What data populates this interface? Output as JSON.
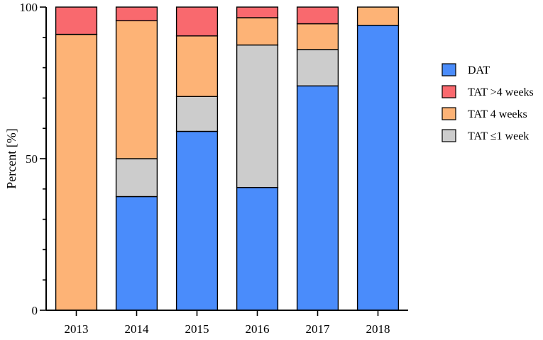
{
  "chart_data": {
    "type": "bar",
    "stacked": true,
    "title": "",
    "xlabel": "",
    "ylabel": "Percent [%]",
    "ylim": [
      0,
      100
    ],
    "yticks": [
      "0",
      "50",
      "100"
    ],
    "categories": [
      "2013",
      "2014",
      "2015",
      "2016",
      "2017",
      "2018"
    ],
    "series": [
      {
        "name": "DAT",
        "color": "#4a8cfb",
        "values": [
          0,
          37.5,
          59,
          40.5,
          74,
          94
        ]
      },
      {
        "name": "TAT ≤1 week",
        "color": "#cccccc",
        "values": [
          0,
          12.5,
          11.5,
          47,
          12,
          0
        ]
      },
      {
        "name": "TAT 4 weeks",
        "color": "#fdb376",
        "values": [
          91,
          45.5,
          20,
          9,
          8.5,
          6
        ]
      },
      {
        "name": "TAT >4 weeks",
        "color": "#f9696e",
        "values": [
          9,
          4.5,
          9.5,
          3.5,
          5.5,
          0
        ]
      }
    ],
    "legend": {
      "placement": "right",
      "order": [
        "DAT",
        "TAT >4 weeks",
        "TAT 4 weeks",
        "TAT ≤1 week"
      ]
    },
    "grid": false
  }
}
